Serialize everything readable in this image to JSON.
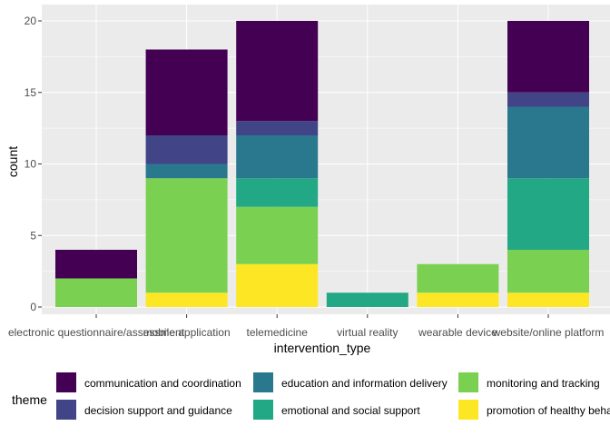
{
  "chart_data": {
    "type": "bar",
    "stacked": true,
    "xlabel": "intervention_type",
    "ylabel": "count",
    "ylim": [
      0,
      21
    ],
    "yticks": [
      0,
      5,
      10,
      15,
      20
    ],
    "grid": true,
    "legend": {
      "title": "theme",
      "position": "bottom"
    },
    "categories": [
      "electronic questionnaire/assessment",
      "mobile application",
      "telemedicine",
      "virtual reality",
      "wearable device",
      "website/online platform"
    ],
    "series": [
      {
        "name": "promotion of healthy behaviour",
        "color": "#FDE725",
        "values": [
          0,
          1,
          3,
          0,
          1,
          1
        ]
      },
      {
        "name": "monitoring and tracking",
        "color": "#7AD151",
        "values": [
          2,
          8,
          4,
          0,
          2,
          3
        ]
      },
      {
        "name": "emotional and social support",
        "color": "#22A884",
        "values": [
          0,
          0,
          2,
          1,
          0,
          5
        ]
      },
      {
        "name": "education and information delivery",
        "color": "#2A788E",
        "values": [
          0,
          1,
          3,
          0,
          0,
          5
        ]
      },
      {
        "name": "decision support and guidance",
        "color": "#414487",
        "values": [
          0,
          2,
          1,
          0,
          0,
          1
        ]
      },
      {
        "name": "communication and coordination",
        "color": "#440154",
        "values": [
          2,
          6,
          7,
          0,
          0,
          5
        ]
      }
    ],
    "legend_order": [
      "communication and coordination",
      "decision support and guidance",
      "education and information delivery",
      "emotional and social support",
      "monitoring and tracking",
      "promotion of healthy behaviour"
    ]
  }
}
